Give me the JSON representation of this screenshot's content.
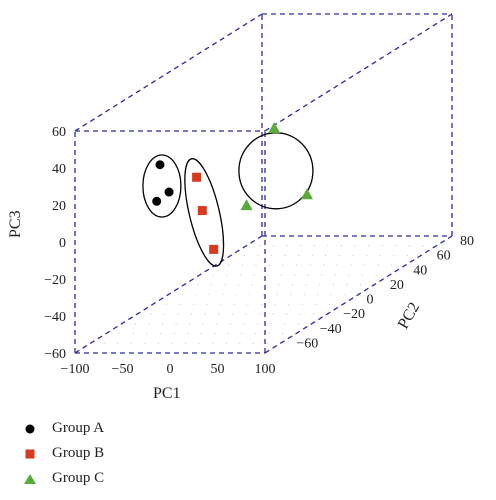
{
  "chart_data": {
    "type": "scatter",
    "projection": "3d",
    "axes": {
      "x": {
        "label": "PC1",
        "range": [
          -100,
          100
        ],
        "ticks": [
          "−100",
          "−50",
          "0",
          "50",
          "100"
        ]
      },
      "y": {
        "label": "PC2",
        "range": [
          -80,
          80
        ],
        "ticks": [
          "−60",
          "−40",
          "−20",
          "0",
          "20",
          "40",
          "60",
          "80"
        ]
      },
      "z": {
        "label": "PC3",
        "range": [
          -60,
          60
        ],
        "ticks": [
          "60",
          "40",
          "20",
          "0",
          "−20",
          "−40",
          "−60"
        ]
      }
    },
    "grid": false,
    "box_style": "dashed",
    "legend_placement": "bottom-left",
    "series": [
      {
        "name": "Group A",
        "marker": "circle",
        "color": "#000000",
        "points": [
          [
            -13,
            -78,
            41
          ],
          [
            -1,
            -80,
            27
          ],
          [
            -14,
            -80,
            22
          ]
        ]
      },
      {
        "name": "Group B",
        "marker": "square",
        "color": "#d93a1f",
        "points": [
          [
            28,
            -80,
            35
          ],
          [
            34,
            -80,
            17
          ],
          [
            46,
            -80,
            -4
          ]
        ]
      },
      {
        "name": "Group C",
        "marker": "triangle",
        "color": "#5aab3a",
        "points": [
          [
            58,
            -38,
            45
          ],
          [
            56,
            -60,
            12
          ],
          [
            95,
            -40,
            10
          ]
        ]
      }
    ]
  }
}
